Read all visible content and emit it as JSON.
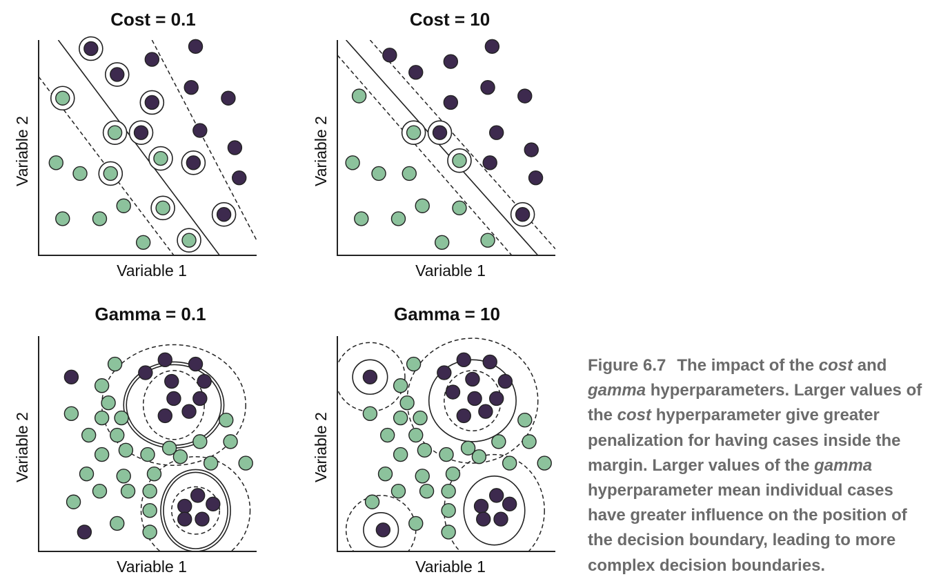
{
  "colors": {
    "class_a": "#3d2a4e",
    "class_b": "#8cc29c",
    "caption_text": "#6b6b6b",
    "ink": "#222222"
  },
  "chart_data": [
    {
      "type": "scatter",
      "title": "Cost = 0.1",
      "xlabel": "Variable 1",
      "ylabel": "Variable 2",
      "xlim": [
        0,
        10
      ],
      "ylim": [
        0,
        10
      ],
      "decision_boundary": {
        "kind": "linear",
        "line": [
          [
            0.9,
            10
          ],
          [
            8.3,
            0
          ]
        ]
      },
      "margins": {
        "kind": "dashed",
        "lines": [
          [
            [
              0,
              8.3
            ],
            [
              6.2,
              0
            ]
          ],
          [
            [
              5.2,
              10
            ],
            [
              10,
              0.7
            ]
          ]
        ]
      },
      "series": [
        {
          "name": "purple",
          "points": [
            [
              2.4,
              9.6,
              true
            ],
            [
              3.6,
              8.4,
              true
            ],
            [
              5.2,
              9.1,
              false
            ],
            [
              7.2,
              9.7,
              false
            ],
            [
              5.2,
              7.1,
              true
            ],
            [
              7.0,
              7.8,
              false
            ],
            [
              8.7,
              7.3,
              false
            ],
            [
              4.7,
              5.7,
              true
            ],
            [
              7.4,
              5.8,
              false
            ],
            [
              9.0,
              5.0,
              false
            ],
            [
              7.1,
              4.3,
              true
            ],
            [
              9.2,
              3.6,
              false
            ],
            [
              8.5,
              1.9,
              true
            ]
          ]
        },
        {
          "name": "green",
          "points": [
            [
              1.1,
              7.3,
              true
            ],
            [
              3.5,
              5.7,
              true
            ],
            [
              5.6,
              4.5,
              true
            ],
            [
              0.8,
              4.3,
              false
            ],
            [
              1.9,
              3.8,
              false
            ],
            [
              3.3,
              3.8,
              true
            ],
            [
              3.9,
              2.3,
              false
            ],
            [
              5.7,
              2.2,
              true
            ],
            [
              1.1,
              1.7,
              false
            ],
            [
              2.8,
              1.7,
              false
            ],
            [
              4.8,
              0.6,
              false
            ],
            [
              6.9,
              0.7,
              true
            ]
          ]
        }
      ]
    },
    {
      "type": "scatter",
      "title": "Cost = 10",
      "xlabel": "Variable 1",
      "ylabel": "Variable 2",
      "xlim": [
        0,
        10
      ],
      "ylim": [
        0,
        10
      ],
      "decision_boundary": {
        "kind": "linear",
        "line": [
          [
            0.4,
            10
          ],
          [
            9.2,
            0
          ]
        ]
      },
      "margins": {
        "kind": "dashed",
        "lines": [
          [
            [
              0,
              9.3
            ],
            [
              8.0,
              0
            ]
          ],
          [
            [
              1.5,
              10
            ],
            [
              10,
              0.3
            ]
          ]
        ]
      },
      "series": [
        {
          "name": "purple",
          "points": [
            [
              2.4,
              9.3,
              false
            ],
            [
              3.6,
              8.5,
              false
            ],
            [
              5.2,
              9.0,
              false
            ],
            [
              7.1,
              9.7,
              false
            ],
            [
              5.2,
              7.1,
              false
            ],
            [
              6.9,
              7.8,
              false
            ],
            [
              8.6,
              7.4,
              false
            ],
            [
              4.7,
              5.7,
              true
            ],
            [
              7.3,
              5.7,
              false
            ],
            [
              8.9,
              4.9,
              false
            ],
            [
              7.0,
              4.3,
              false
            ],
            [
              9.1,
              3.6,
              false
            ],
            [
              8.5,
              1.9,
              true
            ]
          ]
        },
        {
          "name": "green",
          "points": [
            [
              1.0,
              7.4,
              false
            ],
            [
              3.5,
              5.7,
              true
            ],
            [
              5.6,
              4.4,
              true
            ],
            [
              0.7,
              4.3,
              false
            ],
            [
              1.9,
              3.8,
              false
            ],
            [
              3.3,
              3.8,
              false
            ],
            [
              3.9,
              2.3,
              false
            ],
            [
              5.6,
              2.2,
              false
            ],
            [
              1.1,
              1.7,
              false
            ],
            [
              2.8,
              1.7,
              false
            ],
            [
              4.8,
              0.6,
              false
            ],
            [
              6.9,
              0.7,
              false
            ]
          ]
        }
      ]
    },
    {
      "type": "scatter",
      "title": "Gamma = 0.1",
      "xlabel": "Variable 1",
      "ylabel": "Variable 2",
      "xlim": [
        0,
        10
      ],
      "ylim": [
        0,
        10
      ],
      "decision_boundary": {
        "kind": "radial",
        "regions": [
          {
            "center": [
              6.2,
              6.8
            ],
            "solid": [
              2.3,
              2.0
            ],
            "inner_dashed": [
              1.4,
              1.6
            ],
            "outer_dashed": [
              3.3,
              2.8
            ]
          },
          {
            "center": [
              7.2,
              1.9
            ],
            "solid": [
              1.6,
              1.9
            ],
            "inner_dashed": [
              1.1,
              1.1
            ],
            "outer_dashed": [
              2.5,
              2.5
            ]
          }
        ]
      },
      "series": [
        {
          "name": "purple",
          "points": [
            [
              5.8,
              8.9
            ],
            [
              7.2,
              8.7
            ],
            [
              4.9,
              8.3
            ],
            [
              6.1,
              7.9
            ],
            [
              7.6,
              7.9
            ],
            [
              6.2,
              7.1
            ],
            [
              7.4,
              7.1
            ],
            [
              5.8,
              6.3
            ],
            [
              6.9,
              6.5
            ],
            [
              7.3,
              2.6
            ],
            [
              6.7,
              2.1
            ],
            [
              8.0,
              2.2
            ],
            [
              7.5,
              1.5
            ],
            [
              6.7,
              1.5
            ],
            [
              1.5,
              8.1
            ],
            [
              2.1,
              0.9
            ]
          ]
        },
        {
          "name": "green",
          "points": [
            [
              3.5,
              8.7
            ],
            [
              2.9,
              7.7
            ],
            [
              3.2,
              6.9
            ],
            [
              1.5,
              6.4
            ],
            [
              2.9,
              6.2
            ],
            [
              3.8,
              6.2
            ],
            [
              8.6,
              6.1
            ],
            [
              2.3,
              5.4
            ],
            [
              3.6,
              5.4
            ],
            [
              7.4,
              5.1
            ],
            [
              8.8,
              5.1
            ],
            [
              2.9,
              4.5
            ],
            [
              4.0,
              4.7
            ],
            [
              5.0,
              4.5
            ],
            [
              6.0,
              4.8
            ],
            [
              6.5,
              4.4
            ],
            [
              7.9,
              4.1
            ],
            [
              9.5,
              4.1
            ],
            [
              2.2,
              3.6
            ],
            [
              3.9,
              3.5
            ],
            [
              5.3,
              3.6
            ],
            [
              2.8,
              2.8
            ],
            [
              4.1,
              2.8
            ],
            [
              5.1,
              2.8
            ],
            [
              1.6,
              2.3
            ],
            [
              5.1,
              1.9
            ],
            [
              3.6,
              1.3
            ],
            [
              5.1,
              0.9
            ]
          ]
        }
      ]
    },
    {
      "type": "scatter",
      "title": "Gamma = 10",
      "xlabel": "Variable 1",
      "ylabel": "Variable 2",
      "xlim": [
        0,
        10
      ],
      "ylim": [
        0,
        10
      ],
      "decision_boundary": {
        "kind": "radial",
        "regions": [
          {
            "center": [
              1.5,
              8.1
            ],
            "solid": [
              0.8,
              0.8
            ],
            "inner_dashed": null,
            "outer_dashed": [
              1.6,
              1.6
            ]
          },
          {
            "center": [
              6.2,
              7.0
            ],
            "solid": [
              2.0,
              1.9
            ],
            "inner_dashed": [
              1.3,
              1.4
            ],
            "outer_dashed": [
              3.0,
              2.9
            ]
          },
          {
            "center": [
              7.2,
              1.9
            ],
            "solid": [
              1.4,
              1.6
            ],
            "inner_dashed": null,
            "outer_dashed": [
              2.3,
              2.6
            ]
          },
          {
            "center": [
              2.0,
              1.0
            ],
            "solid": [
              0.8,
              0.8
            ],
            "inner_dashed": null,
            "outer_dashed": [
              1.6,
              1.6
            ]
          }
        ]
      },
      "series": [
        {
          "name": "purple",
          "points": [
            [
              1.5,
              8.1
            ],
            [
              5.8,
              8.9
            ],
            [
              7.0,
              8.8
            ],
            [
              4.9,
              8.3
            ],
            [
              6.2,
              8.0
            ],
            [
              7.7,
              7.9
            ],
            [
              5.3,
              7.4
            ],
            [
              6.3,
              7.1
            ],
            [
              7.3,
              7.1
            ],
            [
              5.8,
              6.3
            ],
            [
              6.8,
              6.5
            ],
            [
              7.3,
              2.6
            ],
            [
              6.6,
              2.1
            ],
            [
              7.9,
              2.2
            ],
            [
              7.5,
              1.5
            ],
            [
              6.7,
              1.5
            ],
            [
              2.1,
              1.0
            ]
          ]
        },
        {
          "name": "green",
          "points": [
            [
              3.5,
              8.7
            ],
            [
              2.9,
              7.7
            ],
            [
              3.2,
              6.9
            ],
            [
              1.5,
              6.4
            ],
            [
              2.9,
              6.2
            ],
            [
              3.8,
              6.2
            ],
            [
              8.6,
              6.1
            ],
            [
              2.3,
              5.4
            ],
            [
              3.6,
              5.4
            ],
            [
              7.4,
              5.1
            ],
            [
              8.8,
              5.1
            ],
            [
              2.9,
              4.5
            ],
            [
              4.0,
              4.7
            ],
            [
              5.0,
              4.5
            ],
            [
              6.0,
              4.8
            ],
            [
              6.5,
              4.4
            ],
            [
              7.9,
              4.1
            ],
            [
              9.5,
              4.1
            ],
            [
              2.2,
              3.6
            ],
            [
              3.9,
              3.5
            ],
            [
              5.3,
              3.6
            ],
            [
              2.8,
              2.8
            ],
            [
              4.1,
              2.8
            ],
            [
              5.1,
              2.8
            ],
            [
              1.6,
              2.3
            ],
            [
              5.1,
              1.9
            ],
            [
              3.6,
              1.3
            ],
            [
              5.1,
              0.9
            ]
          ]
        }
      ]
    }
  ],
  "caption": {
    "figure_number": "Figure 6.7",
    "parts": [
      "The impact of the ",
      "cost",
      " and ",
      "gamma",
      " hyperparameters. Larger values of the ",
      "cost",
      " hyperparameter give greater penalization for having cases inside the margin. Larger values of the ",
      "gamma",
      " hyperparameter mean individual cases have greater influence on the position of the decision boundary, leading to more complex decision boundaries."
    ]
  }
}
